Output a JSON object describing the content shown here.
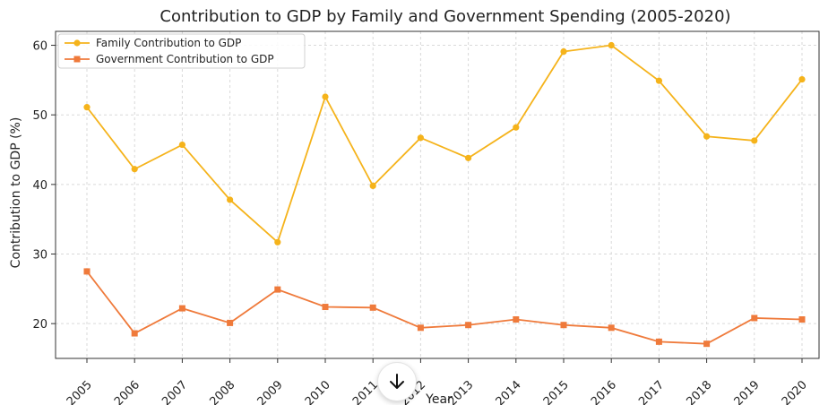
{
  "chart_data": {
    "type": "line",
    "title": "Contribution to GDP by Family and Government Spending (2005-2020)",
    "xlabel": "Year",
    "ylabel": "Contribution to GDP (%)",
    "categories": [
      "2005",
      "2006",
      "2007",
      "2008",
      "2009",
      "2010",
      "2011",
      "2012",
      "2013",
      "2014",
      "2015",
      "2016",
      "2017",
      "2018",
      "2019",
      "2020"
    ],
    "ylim": [
      15,
      62
    ],
    "yticks": [
      20,
      30,
      40,
      50,
      60
    ],
    "grid": true,
    "legend_position": "top-left",
    "series": [
      {
        "name": "Family Contribution to GDP",
        "color": "#f5b31b",
        "marker": "circle",
        "values": [
          51.1,
          42.2,
          45.7,
          37.8,
          31.7,
          52.6,
          39.8,
          46.7,
          43.8,
          48.2,
          59.1,
          60.0,
          54.9,
          46.9,
          46.3,
          55.1
        ]
      },
      {
        "name": "Government Contribution to GDP",
        "color": "#ef7a3b",
        "marker": "square",
        "values": [
          27.5,
          18.6,
          22.2,
          20.1,
          24.9,
          22.4,
          22.3,
          19.4,
          19.8,
          20.6,
          19.8,
          19.4,
          17.4,
          17.1,
          20.8,
          20.6
        ]
      }
    ]
  },
  "ui": {
    "scroll_button_icon": "arrow-down-icon"
  }
}
